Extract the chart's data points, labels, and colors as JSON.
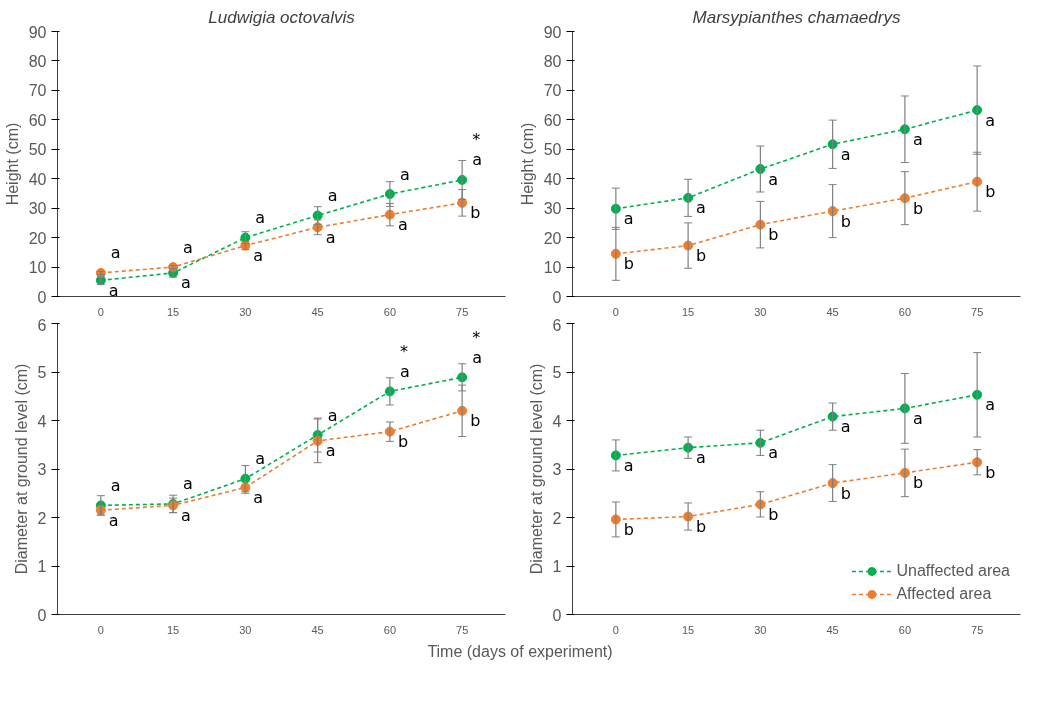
{
  "chart_data": [
    {
      "type": "line",
      "title": "Ludwigia octovalvis",
      "ylabel": "Height (cm)",
      "categories": [
        "0",
        "15",
        "30",
        "45",
        "60",
        "75"
      ],
      "ylim": [
        0,
        90
      ],
      "yticks": [
        0,
        10,
        20,
        30,
        40,
        50,
        60,
        70,
        80,
        90
      ],
      "grid": false,
      "legend": false,
      "marker": "circle",
      "line_style": "dashed",
      "series": [
        {
          "color": "#00b050",
          "values": [
            5.5,
            8,
            20,
            27.5,
            34.8,
            39.6
          ],
          "errors": [
            1.4,
            1.4,
            2,
            3,
            4.2,
            6.6
          ]
        },
        {
          "color": "#ed7d31",
          "values": [
            8,
            10,
            17.3,
            23.5,
            27.8,
            31.8
          ],
          "errors": [
            0.5,
            0.5,
            1.4,
            2.5,
            3.8,
            4.5
          ]
        }
      ],
      "annotations": [
        {
          "text": "a",
          "x": "0",
          "y": 8
        },
        {
          "text": "a",
          "x": "0",
          "y": 5.5
        },
        {
          "text": "a",
          "x": "15",
          "y": 10
        },
        {
          "text": "a",
          "x": "15",
          "y": 8
        },
        {
          "text": "a",
          "x": "30",
          "y": 20
        },
        {
          "text": "a",
          "x": "30",
          "y": 17.3
        },
        {
          "text": "a",
          "x": "45",
          "y": 27.5
        },
        {
          "text": "a",
          "x": "45",
          "y": 23.5
        },
        {
          "text": "a",
          "x": "60",
          "y": 34.8
        },
        {
          "text": "a",
          "x": "60",
          "y": 27.8
        },
        {
          "text": "a",
          "x": "75",
          "y": 39.6
        },
        {
          "text": "b",
          "x": "75",
          "y": 31.8
        },
        {
          "text": "*",
          "x": "75",
          "y": 39.6
        }
      ]
    },
    {
      "type": "line",
      "title": "Marsypianthes chamaedrys",
      "ylabel": "Height (cm)",
      "categories": [
        "0",
        "15",
        "30",
        "45",
        "60",
        "75"
      ],
      "ylim": [
        0,
        90
      ],
      "yticks": [
        0,
        10,
        20,
        30,
        40,
        50,
        60,
        70,
        80,
        90
      ],
      "grid": false,
      "legend": false,
      "marker": "circle",
      "line_style": "dashed",
      "series": [
        {
          "color": "#00b050",
          "values": [
            29.8,
            33.5,
            43.3,
            51.7,
            56.8,
            63.3
          ],
          "errors": [
            7,
            6.3,
            7.8,
            8.2,
            11.3,
            15
          ]
        },
        {
          "color": "#ed7d31",
          "values": [
            14.5,
            17.3,
            24.4,
            29,
            33.4,
            39
          ],
          "errors": [
            9,
            7.7,
            7.9,
            9,
            9,
            10
          ]
        }
      ],
      "annotations": [
        {
          "text": "a",
          "x": "0",
          "y": 29.8
        },
        {
          "text": "a",
          "x": "15",
          "y": 33.5
        },
        {
          "text": "a",
          "x": "30",
          "y": 43.3
        },
        {
          "text": "a",
          "x": "45",
          "y": 51.7
        },
        {
          "text": "a",
          "x": "60",
          "y": 56.8
        },
        {
          "text": "a",
          "x": "75",
          "y": 63.3
        },
        {
          "text": "b",
          "x": "0",
          "y": 14.5
        },
        {
          "text": "b",
          "x": "15",
          "y": 17.3
        },
        {
          "text": "b",
          "x": "30",
          "y": 24.4
        },
        {
          "text": "b",
          "x": "45",
          "y": 29
        },
        {
          "text": "b",
          "x": "60",
          "y": 33.4
        },
        {
          "text": "b",
          "x": "75",
          "y": 39
        }
      ]
    },
    {
      "type": "line",
      "ylabel": "Diameter at ground level (cm)",
      "xlabel": "Time (days of experiment)",
      "categories": [
        "0",
        "15",
        "30",
        "45",
        "60",
        "75"
      ],
      "ylim": [
        0,
        6
      ],
      "yticks": [
        0,
        1,
        2,
        3,
        4,
        5,
        6
      ],
      "grid": false,
      "legend": false,
      "marker": "circle",
      "line_style": "dashed",
      "series": [
        {
          "color": "#00b050",
          "values": [
            2.25,
            2.28,
            2.8,
            3.7,
            4.6,
            4.89
          ],
          "errors": [
            0.2,
            0.18,
            0.27,
            0.35,
            0.28,
            0.28
          ]
        },
        {
          "color": "#ed7d31",
          "values": [
            2.15,
            2.25,
            2.62,
            3.58,
            3.77,
            4.2
          ],
          "errors": [
            0.1,
            0.15,
            0.12,
            0.45,
            0.2,
            0.53
          ]
        }
      ],
      "annotations": [
        {
          "text": "a",
          "x": "0",
          "y": 2.25
        },
        {
          "text": "a",
          "x": "0",
          "y": 2.15
        },
        {
          "text": "a",
          "x": "15",
          "y": 2.28
        },
        {
          "text": "a",
          "x": "15",
          "y": 2.25
        },
        {
          "text": "a",
          "x": "30",
          "y": 2.8
        },
        {
          "text": "a",
          "x": "30",
          "y": 2.62
        },
        {
          "text": "a",
          "x": "45",
          "y": 3.7
        },
        {
          "text": "a",
          "x": "45",
          "y": 3.58
        },
        {
          "text": "a",
          "x": "60",
          "y": 4.6
        },
        {
          "text": "b",
          "x": "60",
          "y": 3.77
        },
        {
          "text": "*",
          "x": "60",
          "y": 4.6
        },
        {
          "text": "a",
          "x": "75",
          "y": 4.89
        },
        {
          "text": "b",
          "x": "75",
          "y": 4.2
        },
        {
          "text": "*",
          "x": "75",
          "y": 4.89
        }
      ]
    },
    {
      "type": "line",
      "ylabel": "Diameter at ground level (cm)",
      "categories": [
        "0",
        "15",
        "30",
        "45",
        "60",
        "75"
      ],
      "ylim": [
        0,
        6
      ],
      "yticks": [
        0,
        1,
        2,
        3,
        4,
        5,
        6
      ],
      "grid": false,
      "legend": "bottom right",
      "marker": "circle",
      "line_style": "dashed",
      "series": [
        {
          "name": "Unaffected area",
          "color": "#00b050",
          "values": [
            3.28,
            3.44,
            3.54,
            4.08,
            4.25,
            4.53
          ],
          "errors": [
            0.32,
            0.22,
            0.26,
            0.28,
            0.72,
            0.87
          ]
        },
        {
          "name": "Affected area",
          "color": "#ed7d31",
          "values": [
            1.96,
            2.02,
            2.27,
            2.71,
            2.92,
            3.14
          ],
          "errors": [
            0.36,
            0.28,
            0.26,
            0.38,
            0.49,
            0.26
          ]
        }
      ],
      "annotations": [
        {
          "text": "a",
          "x": "0",
          "y": 3.28
        },
        {
          "text": "a",
          "x": "15",
          "y": 3.44
        },
        {
          "text": "a",
          "x": "30",
          "y": 3.54
        },
        {
          "text": "a",
          "x": "45",
          "y": 4.08
        },
        {
          "text": "a",
          "x": "60",
          "y": 4.25
        },
        {
          "text": "a",
          "x": "75",
          "y": 4.53
        },
        {
          "text": "b",
          "x": "0",
          "y": 1.96
        },
        {
          "text": "b",
          "x": "15",
          "y": 2.02
        },
        {
          "text": "b",
          "x": "30",
          "y": 2.27
        },
        {
          "text": "b",
          "x": "45",
          "y": 2.71
        },
        {
          "text": "b",
          "x": "60",
          "y": 2.92
        },
        {
          "text": "b",
          "x": "75",
          "y": 3.14
        }
      ]
    }
  ]
}
